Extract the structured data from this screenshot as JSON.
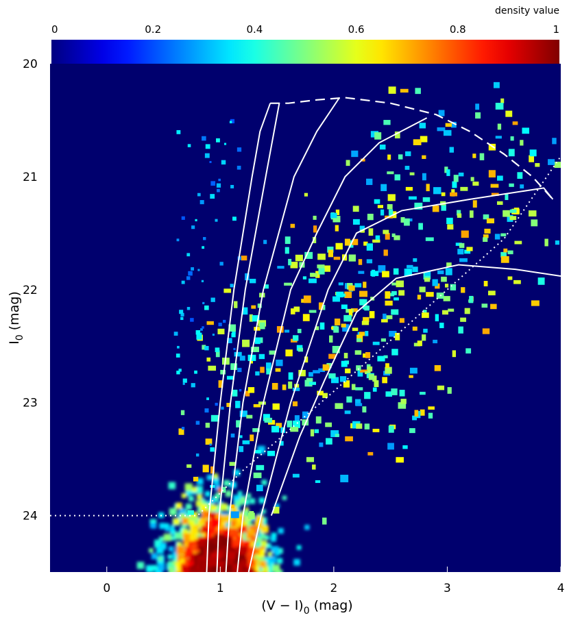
{
  "chart_data": {
    "type": "heatmap",
    "title": "",
    "xlabel": "(V − I)",
    "xlabel_sub": "0",
    "xlabel_unit": " (mag)",
    "ylabel": "I",
    "ylabel_sub": "0",
    "ylabel_unit": " (mag)",
    "xlim": [
      -0.5,
      4
    ],
    "ylim": [
      24.5,
      20
    ],
    "y_inverted": true,
    "xticks": [
      0,
      1,
      2,
      3,
      4
    ],
    "yticks": [
      20,
      21,
      22,
      23,
      24
    ],
    "colorbar": {
      "title": "density value",
      "range": [
        0,
        1
      ],
      "ticks": [
        "0",
        "0.2",
        "0.4",
        "0.6",
        "0.8",
        "1"
      ],
      "colormap": "jet",
      "stops": [
        "#00007f",
        "#0000ff",
        "#00ffff",
        "#ffff00",
        "#ff0000",
        "#7f0000"
      ]
    },
    "background_color": "#00006e",
    "density_main_clump": {
      "x_center": 1.0,
      "x_spread": 0.55,
      "y_top": 23.0,
      "y_bottom": 24.5,
      "peak_density": 1.0
    },
    "density_rgb_sequence": {
      "x_start": 1.5,
      "y_start": 23.2,
      "x_end": 3.6,
      "y_end": 21.0,
      "density": 0.5
    },
    "isochrones": [
      {
        "name": "",
        "style": "solid",
        "points": [
          [
            0.88,
            24.5
          ],
          [
            0.9,
            24.0
          ],
          [
            1.0,
            23.0
          ],
          [
            1.12,
            22.0
          ],
          [
            1.28,
            21.0
          ],
          [
            1.35,
            20.6
          ],
          [
            1.44,
            20.35
          ]
        ]
      },
      {
        "name": "",
        "style": "solid",
        "points": [
          [
            0.97,
            24.5
          ],
          [
            0.99,
            24.0
          ],
          [
            1.09,
            23.0
          ],
          [
            1.22,
            22.0
          ],
          [
            1.4,
            21.0
          ],
          [
            1.52,
            20.35
          ]
        ]
      },
      {
        "name": "",
        "style": "solid",
        "points": [
          [
            1.05,
            24.5
          ],
          [
            1.08,
            24.0
          ],
          [
            1.2,
            23.0
          ],
          [
            1.38,
            22.0
          ],
          [
            1.65,
            21.0
          ],
          [
            1.85,
            20.6
          ],
          [
            2.05,
            20.3
          ]
        ]
      },
      {
        "name": "",
        "style": "solid",
        "points": [
          [
            1.15,
            24.5
          ],
          [
            1.2,
            24.0
          ],
          [
            1.38,
            23.0
          ],
          [
            1.62,
            22.0
          ],
          [
            1.85,
            21.5
          ],
          [
            2.1,
            21.0
          ],
          [
            2.4,
            20.7
          ],
          [
            2.82,
            20.48
          ]
        ]
      },
      {
        "name": "",
        "style": "solid",
        "points": [
          [
            1.25,
            24.5
          ],
          [
            1.36,
            24.0
          ],
          [
            1.62,
            23.0
          ],
          [
            1.95,
            22.0
          ],
          [
            2.2,
            21.5
          ],
          [
            2.6,
            21.3
          ],
          [
            3.2,
            21.2
          ],
          [
            3.85,
            21.1
          ],
          [
            3.93,
            21.2
          ]
        ]
      },
      {
        "name": "",
        "style": "solid",
        "points": [
          [
            1.45,
            24.0
          ],
          [
            1.7,
            23.3
          ],
          [
            1.92,
            22.8
          ],
          [
            2.2,
            22.2
          ],
          [
            2.55,
            21.9
          ],
          [
            3.1,
            21.78
          ],
          [
            3.6,
            21.82
          ],
          [
            4.0,
            21.88
          ]
        ]
      }
    ],
    "tip_locus": {
      "style": "dashed",
      "points": [
        [
          1.44,
          20.35
        ],
        [
          1.6,
          20.35
        ],
        [
          1.85,
          20.32
        ],
        [
          2.1,
          20.3
        ],
        [
          2.5,
          20.35
        ],
        [
          2.9,
          20.45
        ],
        [
          3.2,
          20.6
        ],
        [
          3.5,
          20.8
        ],
        [
          3.75,
          21.0
        ],
        [
          3.93,
          21.2
        ]
      ]
    },
    "completeness_line": {
      "style": "dotted",
      "points": [
        [
          -0.5,
          24.0
        ],
        [
          0.8,
          24.0
        ],
        [
          1.2,
          23.6
        ],
        [
          2.0,
          22.9
        ],
        [
          3.0,
          22.0
        ],
        [
          3.5,
          21.55
        ],
        [
          4.0,
          20.82
        ]
      ]
    }
  }
}
